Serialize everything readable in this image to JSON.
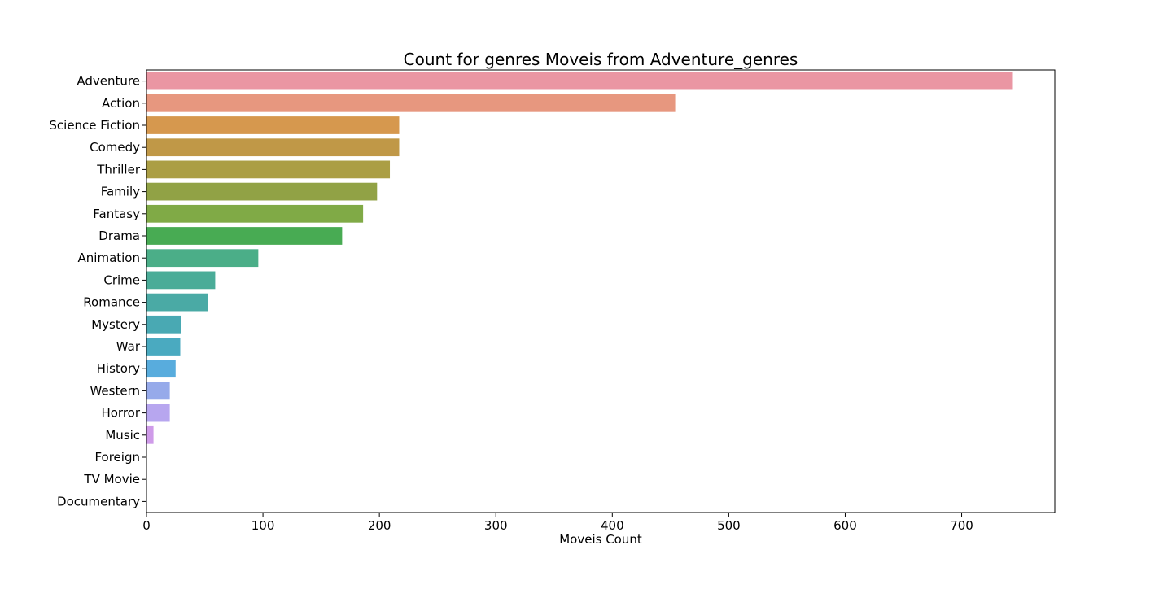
{
  "chart_data": {
    "type": "bar",
    "orientation": "horizontal",
    "title": "Count for genres Moveis from Adventure_genres",
    "xlabel": "Moveis Count",
    "ylabel": "",
    "xlim": [
      0,
      780
    ],
    "xticks": [
      0,
      100,
      200,
      300,
      400,
      500,
      600,
      700
    ],
    "grid": false,
    "legend": "none",
    "categories": [
      "Adventure",
      "Action",
      "Science Fiction",
      "Comedy",
      "Thriller",
      "Family",
      "Fantasy",
      "Drama",
      "Animation",
      "Crime",
      "Romance",
      "Mystery",
      "War",
      "History",
      "Western",
      "Horror",
      "Music",
      "Foreign",
      "TV Movie",
      "Documentary"
    ],
    "values": [
      744,
      454,
      217,
      217,
      209,
      198,
      186,
      168,
      96,
      59,
      53,
      30,
      29,
      25,
      20,
      20,
      6,
      0,
      0,
      0
    ],
    "colors": [
      "#ea96a3",
      "#e7977f",
      "#d6984e",
      "#c09847",
      "#ab9e44",
      "#91a245",
      "#80aa46",
      "#48ab53",
      "#4bae88",
      "#4aac98",
      "#4aaaa5",
      "#49a9b3",
      "#4aaac0",
      "#58acdd",
      "#96aaea",
      "#b7a6ef",
      "#cf9be9",
      "#e390ce",
      "#e993c1",
      "#ea95b4"
    ]
  }
}
